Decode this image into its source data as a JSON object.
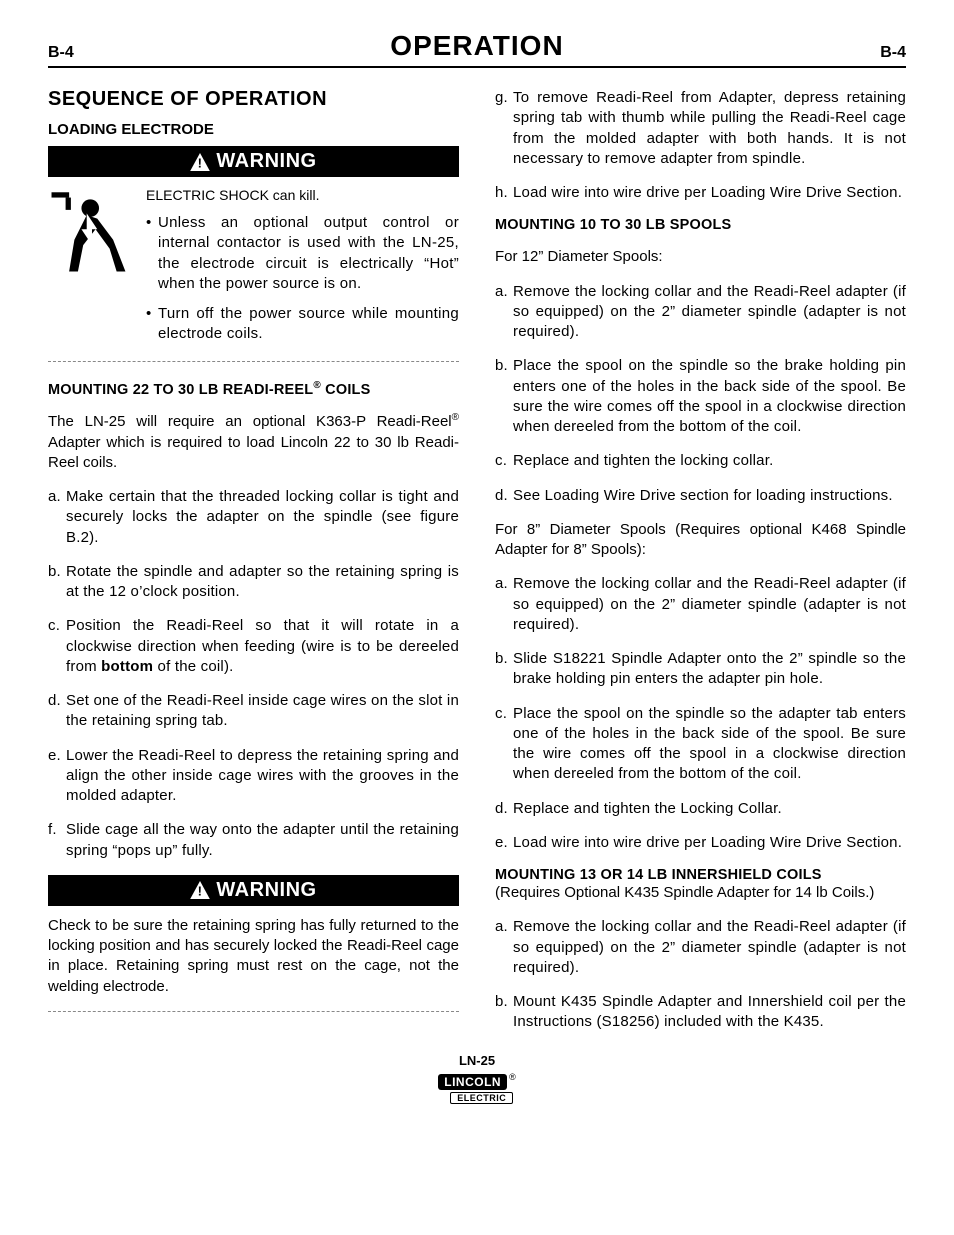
{
  "header": {
    "page_number": "B-4",
    "title": "OPERATION"
  },
  "left": {
    "section_title": "SEQUENCE OF OPERATION",
    "sub_title": "LOADING ELECTRODE",
    "warning_label": "WARNING",
    "shock_line": "ELECTRIC SHOCK can kill.",
    "bullets": [
      "Unless an optional output control or internal contactor is used with the LN-25, the electrode circuit is electrically “Hot” when the power source is on.",
      "Turn off the power source while mounting electrode coils."
    ],
    "mount_a_heading_pre": "MOUNTING 22 TO 30 LB READI-REEL",
    "mount_a_heading_suf": " COILS",
    "mount_a_intro_pre": "The LN-25 will require an optional K363-P Readi-Reel",
    "mount_a_intro_suf": " Adapter which is required to load Lincoln 22 to 30 lb Readi-Reel coils.",
    "steps_a": [
      "Make certain that the threaded locking collar is tight and securely locks the adapter on the spindle (see figure B.2).",
      "Rotate the spindle and adapter so the retaining spring is at the 12 o’clock position.",
      "Position the Readi-Reel so that it will rotate in a clockwise direction when feeding (wire is to be dereeled from <b>bottom</b> of the coil).",
      "Set one of the Readi-Reel inside cage wires on the slot in the retaining spring tab.",
      "Lower the Readi-Reel to depress the retaining spring and align the other inside cage wires with the grooves in the molded adapter.",
      "Slide cage all the way onto the adapter until the retaining spring “pops up” fully."
    ],
    "warning2_text": "Check to be sure the retaining spring has fully returned to the locking position and has securely locked the Readi-Reel cage in place. Retaining spring must rest on the cage, not the welding electrode."
  },
  "right": {
    "steps_gh": [
      "To remove Readi-Reel from Adapter, depress retaining spring tab with thumb while pulling the Readi-Reel cage from the molded adapter with both hands. It is not necessary to remove adapter from spindle.",
      "Load wire into wire drive per Loading Wire Drive Section."
    ],
    "mount_b_heading": "MOUNTING 10 TO 30 LB SPOOLS",
    "for12": "For 12” Diameter Spools:",
    "steps_12": [
      "Remove the locking collar and the Readi-Reel adapter (if so equipped) on the 2” diameter spindle (adapter is not required).",
      "Place the spool on the spindle so the brake holding pin enters one of the holes in the back side of the spool. Be sure the wire comes off the spool in a clockwise direction when dereeled from the bottom of the coil.",
      "Replace and tighten the locking collar.",
      "See Loading Wire Drive section for loading instructions."
    ],
    "for8": "For 8” Diameter Spools (Requires optional K468 Spindle Adapter for 8” Spools):",
    "steps_8": [
      "Remove the locking collar and the Readi-Reel adapter (if so equipped) on the 2” diameter spindle (adapter is not required).",
      "Slide S18221 Spindle Adapter onto the 2” spindle so the brake holding pin enters the adapter pin hole.",
      "Place the spool on the spindle so the adapter tab enters one of the holes in the back side of the spool. Be sure the wire comes off the spool in a clockwise direction when dereeled from the bottom of the coil.",
      "Replace and tighten the Locking Collar.",
      "Load wire into wire drive per Loading Wire Drive Section."
    ],
    "mount_c_heading": "MOUNTING 13 OR 14 LB INNERSHIELD COILS",
    "mount_c_sub": "(Requires Optional K435 Spindle Adapter for 14 lb Coils.)",
    "steps_c": [
      "Remove the locking collar and the Readi-Reel adapter (if so equipped) on the 2” diameter spindle (adapter is not required).",
      "Mount K435 Spindle Adapter and Innershield coil per the Instructions (S18256) included with the K435."
    ]
  },
  "footer": {
    "model": "LN-25",
    "brand_top": "LINCOLN",
    "brand_bottom": "ELECTRIC"
  },
  "alpha": [
    "a",
    "b",
    "c",
    "d",
    "e",
    "f",
    "g",
    "h"
  ],
  "colors": {
    "text": "#000000",
    "bg": "#ffffff",
    "rule": "#888888"
  }
}
